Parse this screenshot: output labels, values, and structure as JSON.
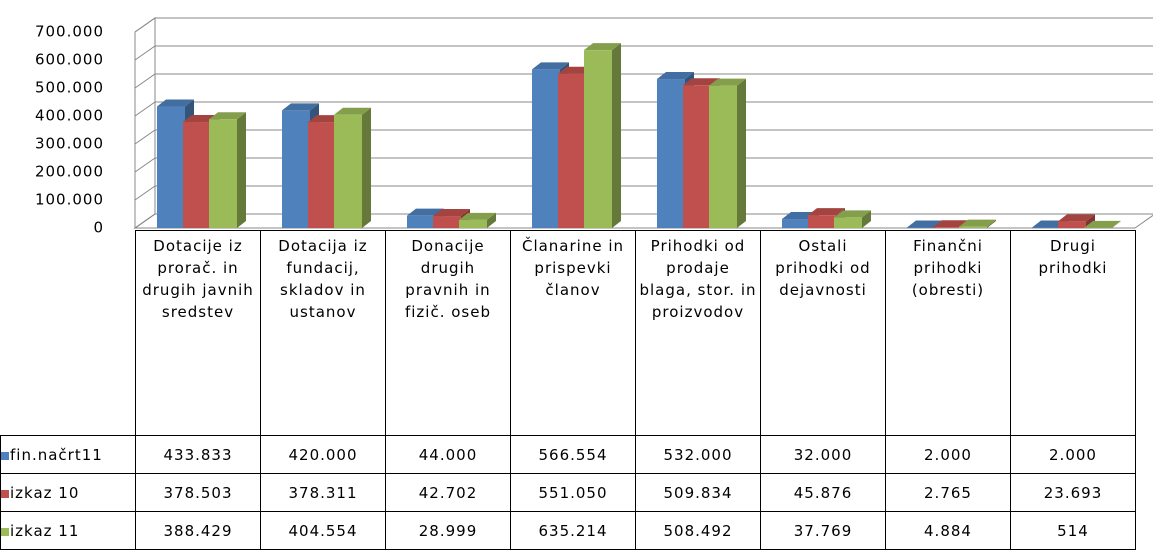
{
  "chart_data": {
    "type": "bar3d",
    "categories": [
      "Dotacije iz prorač. in drugih javnih sredstev",
      "Dotacija iz fundacij, skladov in ustanov",
      "Donacije drugih pravnih in fizič. oseb",
      "Članarine in prispevki članov",
      "Prihodki od prodaje blaga, stor. in proizvodov",
      "Ostali prihodki od dejavnosti",
      "Finančni prihodki (obresti)",
      "Drugi prihodki"
    ],
    "series": [
      {
        "name": "fin.načrt11",
        "color": "#4f81bd",
        "values": [
          433833,
          420000,
          44000,
          566554,
          532000,
          32000,
          2000,
          2000
        ],
        "value_labels": [
          "433.833",
          "420.000",
          "44.000",
          "566.554",
          "532.000",
          "32.000",
          "2.000",
          "2.000"
        ]
      },
      {
        "name": "izkaz 10",
        "color": "#c0504d",
        "values": [
          378503,
          378311,
          42702,
          551050,
          509834,
          45876,
          2765,
          23693
        ],
        "value_labels": [
          "378.503",
          "378.311",
          "42.702",
          "551.050",
          "509.834",
          "45.876",
          "2.765",
          "23.693"
        ]
      },
      {
        "name": "izkaz 11",
        "color": "#9bbb59",
        "values": [
          388429,
          404554,
          28999,
          635214,
          508492,
          37769,
          4884,
          514
        ],
        "value_labels": [
          "388.429",
          "404.554",
          "28.999",
          "635.214",
          "508.492",
          "37.769",
          "4.884",
          "514"
        ]
      }
    ],
    "ylim": [
      0,
      700000
    ],
    "yticks": [
      0,
      {
        "value": 100000,
        "label": "100.000"
      },
      {
        "value": 200000,
        "label": "200.000"
      },
      {
        "value": 300000,
        "label": "300.000"
      },
      {
        "value": 400000,
        "label": "400.000"
      },
      {
        "value": 500000,
        "label": "500.000"
      },
      {
        "value": 600000,
        "label": "600.000"
      },
      {
        "value": 700000,
        "label": "700.000"
      }
    ],
    "grid": true
  }
}
